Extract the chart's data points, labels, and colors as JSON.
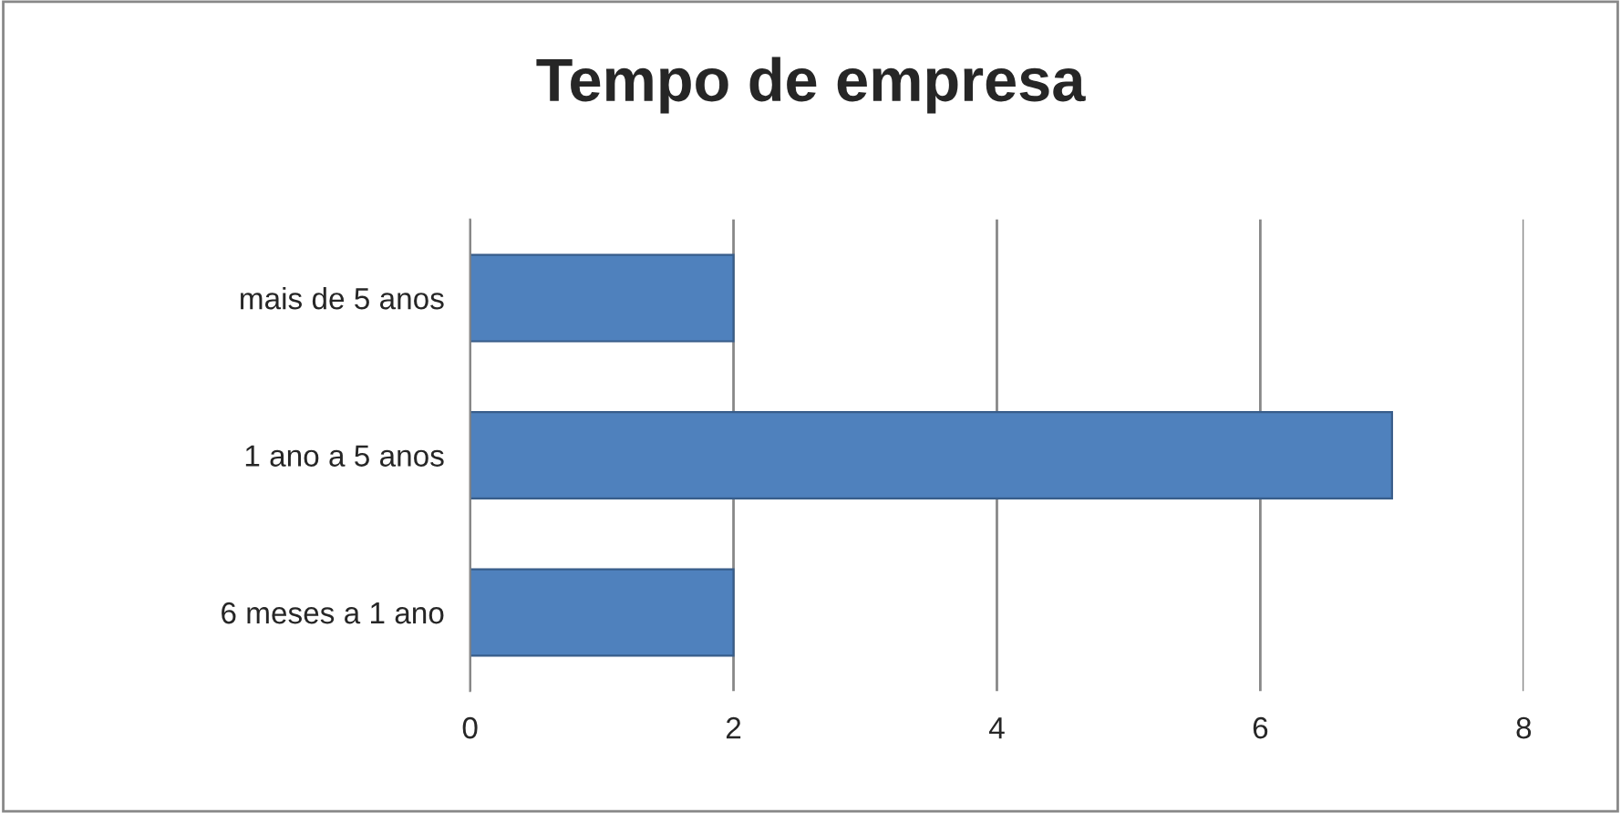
{
  "chart_data": {
    "type": "bar",
    "orientation": "horizontal",
    "title": "Tempo de empresa",
    "categories": [
      "mais de 5 anos",
      "1 ano a 5 anos",
      "6 meses a 1 ano"
    ],
    "values": [
      2,
      7,
      2
    ],
    "color": "#4f81bd",
    "xlim": [
      0,
      8
    ],
    "xticks": [
      0,
      2,
      4,
      6,
      8
    ],
    "grid": "x",
    "legend": false
  }
}
